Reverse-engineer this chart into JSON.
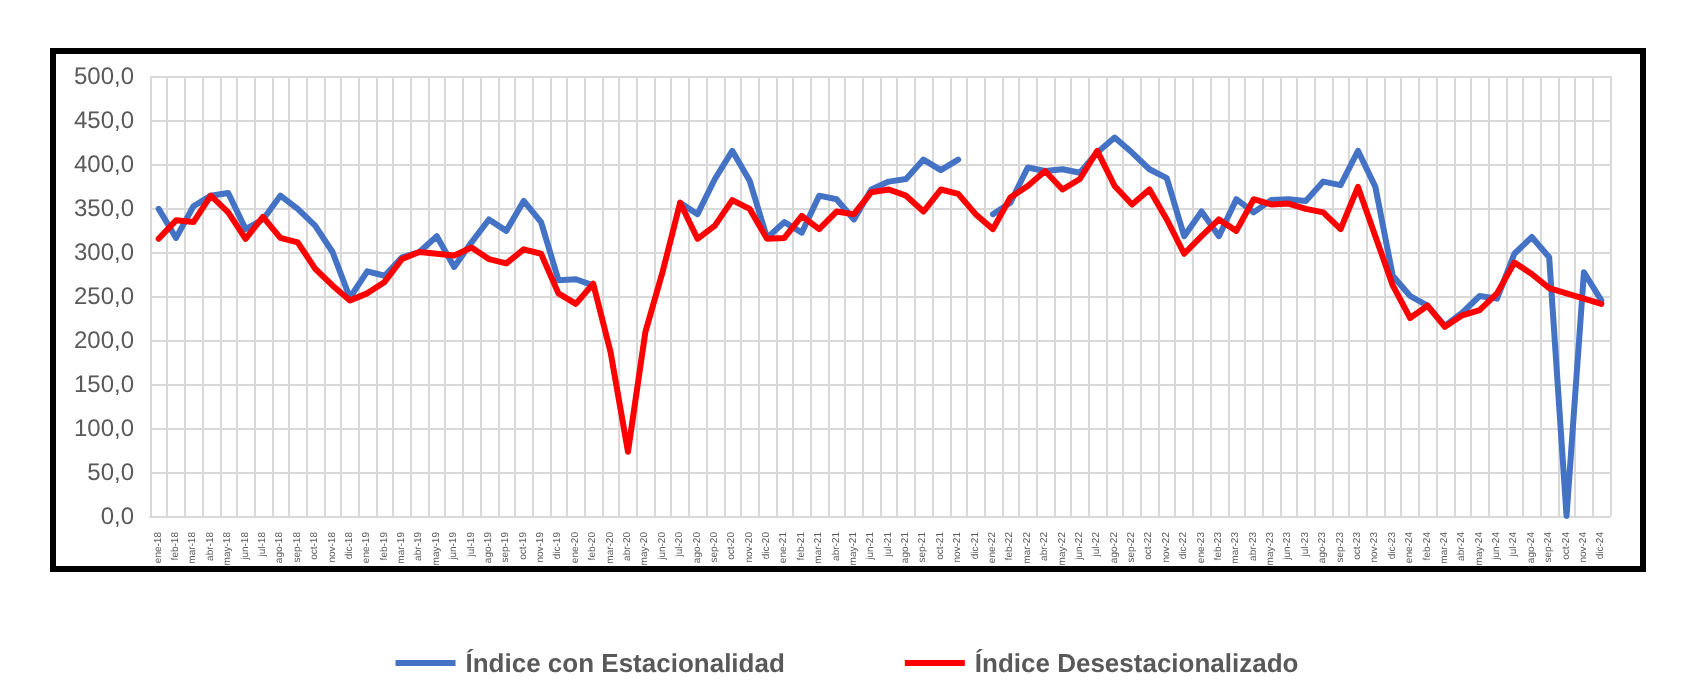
{
  "chart_data": {
    "type": "line",
    "categories": [
      "ene-18",
      "feb-18",
      "mar-18",
      "abr-18",
      "may-18",
      "jun-18",
      "jul-18",
      "ago-18",
      "sep-18",
      "oct-18",
      "nov-18",
      "dic-18",
      "ene-19",
      "feb-19",
      "mar-19",
      "abr-19",
      "may-19",
      "jun-19",
      "jul-19",
      "ago-19",
      "sep-19",
      "oct-19",
      "nov-19",
      "dic-19",
      "ene-20",
      "feb-20",
      "mar-20",
      "abr-20",
      "may-20",
      "jun-20",
      "jul-20",
      "ago-20",
      "sep-20",
      "oct-20",
      "nov-20",
      "dic-20",
      "ene-21",
      "feb-21",
      "mar-21",
      "abr-21",
      "may-21",
      "jun-21",
      "jul-21",
      "ago-21",
      "sep-21",
      "oct-21",
      "nov-21",
      "dic-21",
      "ene-22",
      "feb-22",
      "mar-22",
      "abr-22",
      "may-22",
      "jun-22",
      "jul-22",
      "ago-22",
      "sep-22",
      "oct-22",
      "nov-22",
      "dic-22",
      "ene-23",
      "feb-23",
      "mar-23",
      "abr-23",
      "may-23",
      "jun-23",
      "jul-23",
      "ago-23",
      "sep-23",
      "oct-23",
      "nov-23",
      "dic-23",
      "ene-24",
      "feb-24",
      "mar-24",
      "abr-24",
      "may-24",
      "jun-24",
      "jul-24",
      "ago-24",
      "sep-24",
      "oct-24",
      "nov-24",
      "dic-24"
    ],
    "series": [
      {
        "name": "Índice con Estacionalidad",
        "color": "#4472c4",
        "values": [
          349,
          316,
          352,
          364,
          367,
          326,
          337,
          364,
          349,
          330,
          300,
          248,
          278,
          273,
          294,
          300,
          318,
          283,
          311,
          337,
          324,
          358,
          334,
          268,
          269,
          262,
          null,
          null,
          null,
          null,
          356,
          343,
          383,
          415,
          381,
          316,
          334,
          322,
          364,
          360,
          337,
          371,
          380,
          383,
          405,
          393,
          405,
          null,
          343,
          356,
          396,
          392,
          394,
          390,
          413,
          430,
          413,
          394,
          384,
          318,
          346,
          318,
          360,
          345,
          359,
          360,
          358,
          380,
          376,
          415,
          374,
          273,
          250,
          239,
          216,
          231,
          250,
          247,
          298,
          317,
          294,
          0,
          277,
          245
        ]
      },
      {
        "name": "Índice Desestacionalizado",
        "color": "#ff0000",
        "values": [
          315,
          336,
          334,
          364,
          345,
          315,
          340,
          316,
          311,
          281,
          262,
          245,
          253,
          266,
          292,
          300,
          298,
          296,
          305,
          292,
          287,
          303,
          298,
          253,
          241,
          264,
          186,
          73,
          209,
          278,
          356,
          315,
          330,
          359,
          349,
          315,
          316,
          341,
          326,
          346,
          343,
          368,
          371,
          364,
          346,
          371,
          366,
          343,
          326,
          362,
          375,
          392,
          371,
          383,
          415,
          375,
          354,
          371,
          337,
          298,
          318,
          337,
          324,
          360,
          354,
          355,
          349,
          345,
          326,
          374,
          318,
          262,
          225,
          239,
          215,
          228,
          234,
          253,
          288,
          275,
          259,
          253,
          247,
          241
        ]
      }
    ],
    "ylim": [
      0,
      500
    ],
    "yticks": [
      {
        "value": 0,
        "label": "0,0"
      },
      {
        "value": 50,
        "label": "50,0"
      },
      {
        "value": 100,
        "label": "100,0"
      },
      {
        "value": 150,
        "label": "150,0"
      },
      {
        "value": 200,
        "label": "200,0"
      },
      {
        "value": 250,
        "label": "250,0"
      },
      {
        "value": 300,
        "label": "300,0"
      },
      {
        "value": 350,
        "label": "350,0"
      },
      {
        "value": 400,
        "label": "400,0"
      },
      {
        "value": 450,
        "label": "450,0"
      },
      {
        "value": 500,
        "label": "500,0"
      }
    ],
    "grid": true,
    "legend": "bottom",
    "marker": "none",
    "line_style": "solid"
  }
}
